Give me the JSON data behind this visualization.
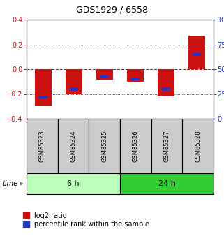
{
  "title": "GDS1929 / 6558",
  "samples": [
    "GSM85323",
    "GSM85324",
    "GSM85325",
    "GSM85326",
    "GSM85327",
    "GSM85328"
  ],
  "log2_ratio": [
    -0.3,
    -0.205,
    -0.082,
    -0.102,
    -0.213,
    0.268
  ],
  "percentile_rank": [
    22,
    30,
    42,
    40,
    30,
    65
  ],
  "groups": [
    {
      "label": "6 h",
      "indices": [
        0,
        1,
        2
      ],
      "color": "#bbffbb"
    },
    {
      "label": "24 h",
      "indices": [
        3,
        4,
        5
      ],
      "color": "#33cc33"
    }
  ],
  "ylim": [
    -0.4,
    0.4
  ],
  "yticks_left": [
    -0.4,
    -0.2,
    0.0,
    0.2,
    0.4
  ],
  "yticks_right": [
    0,
    25,
    50,
    75,
    100
  ],
  "bar_width": 0.55,
  "red_color": "#cc1111",
  "blue_color": "#2233cc",
  "blue_bar_width": 0.28,
  "blue_bar_height": 0.022,
  "background_color": "#ffffff",
  "plot_bg": "#ffffff",
  "sample_box_color": "#cccccc",
  "left_label_color": "#cc1111",
  "right_label_color": "#2233cc",
  "title_fontsize": 9,
  "tick_fontsize": 7,
  "sample_fontsize": 6,
  "group_fontsize": 8,
  "legend_fontsize": 7
}
